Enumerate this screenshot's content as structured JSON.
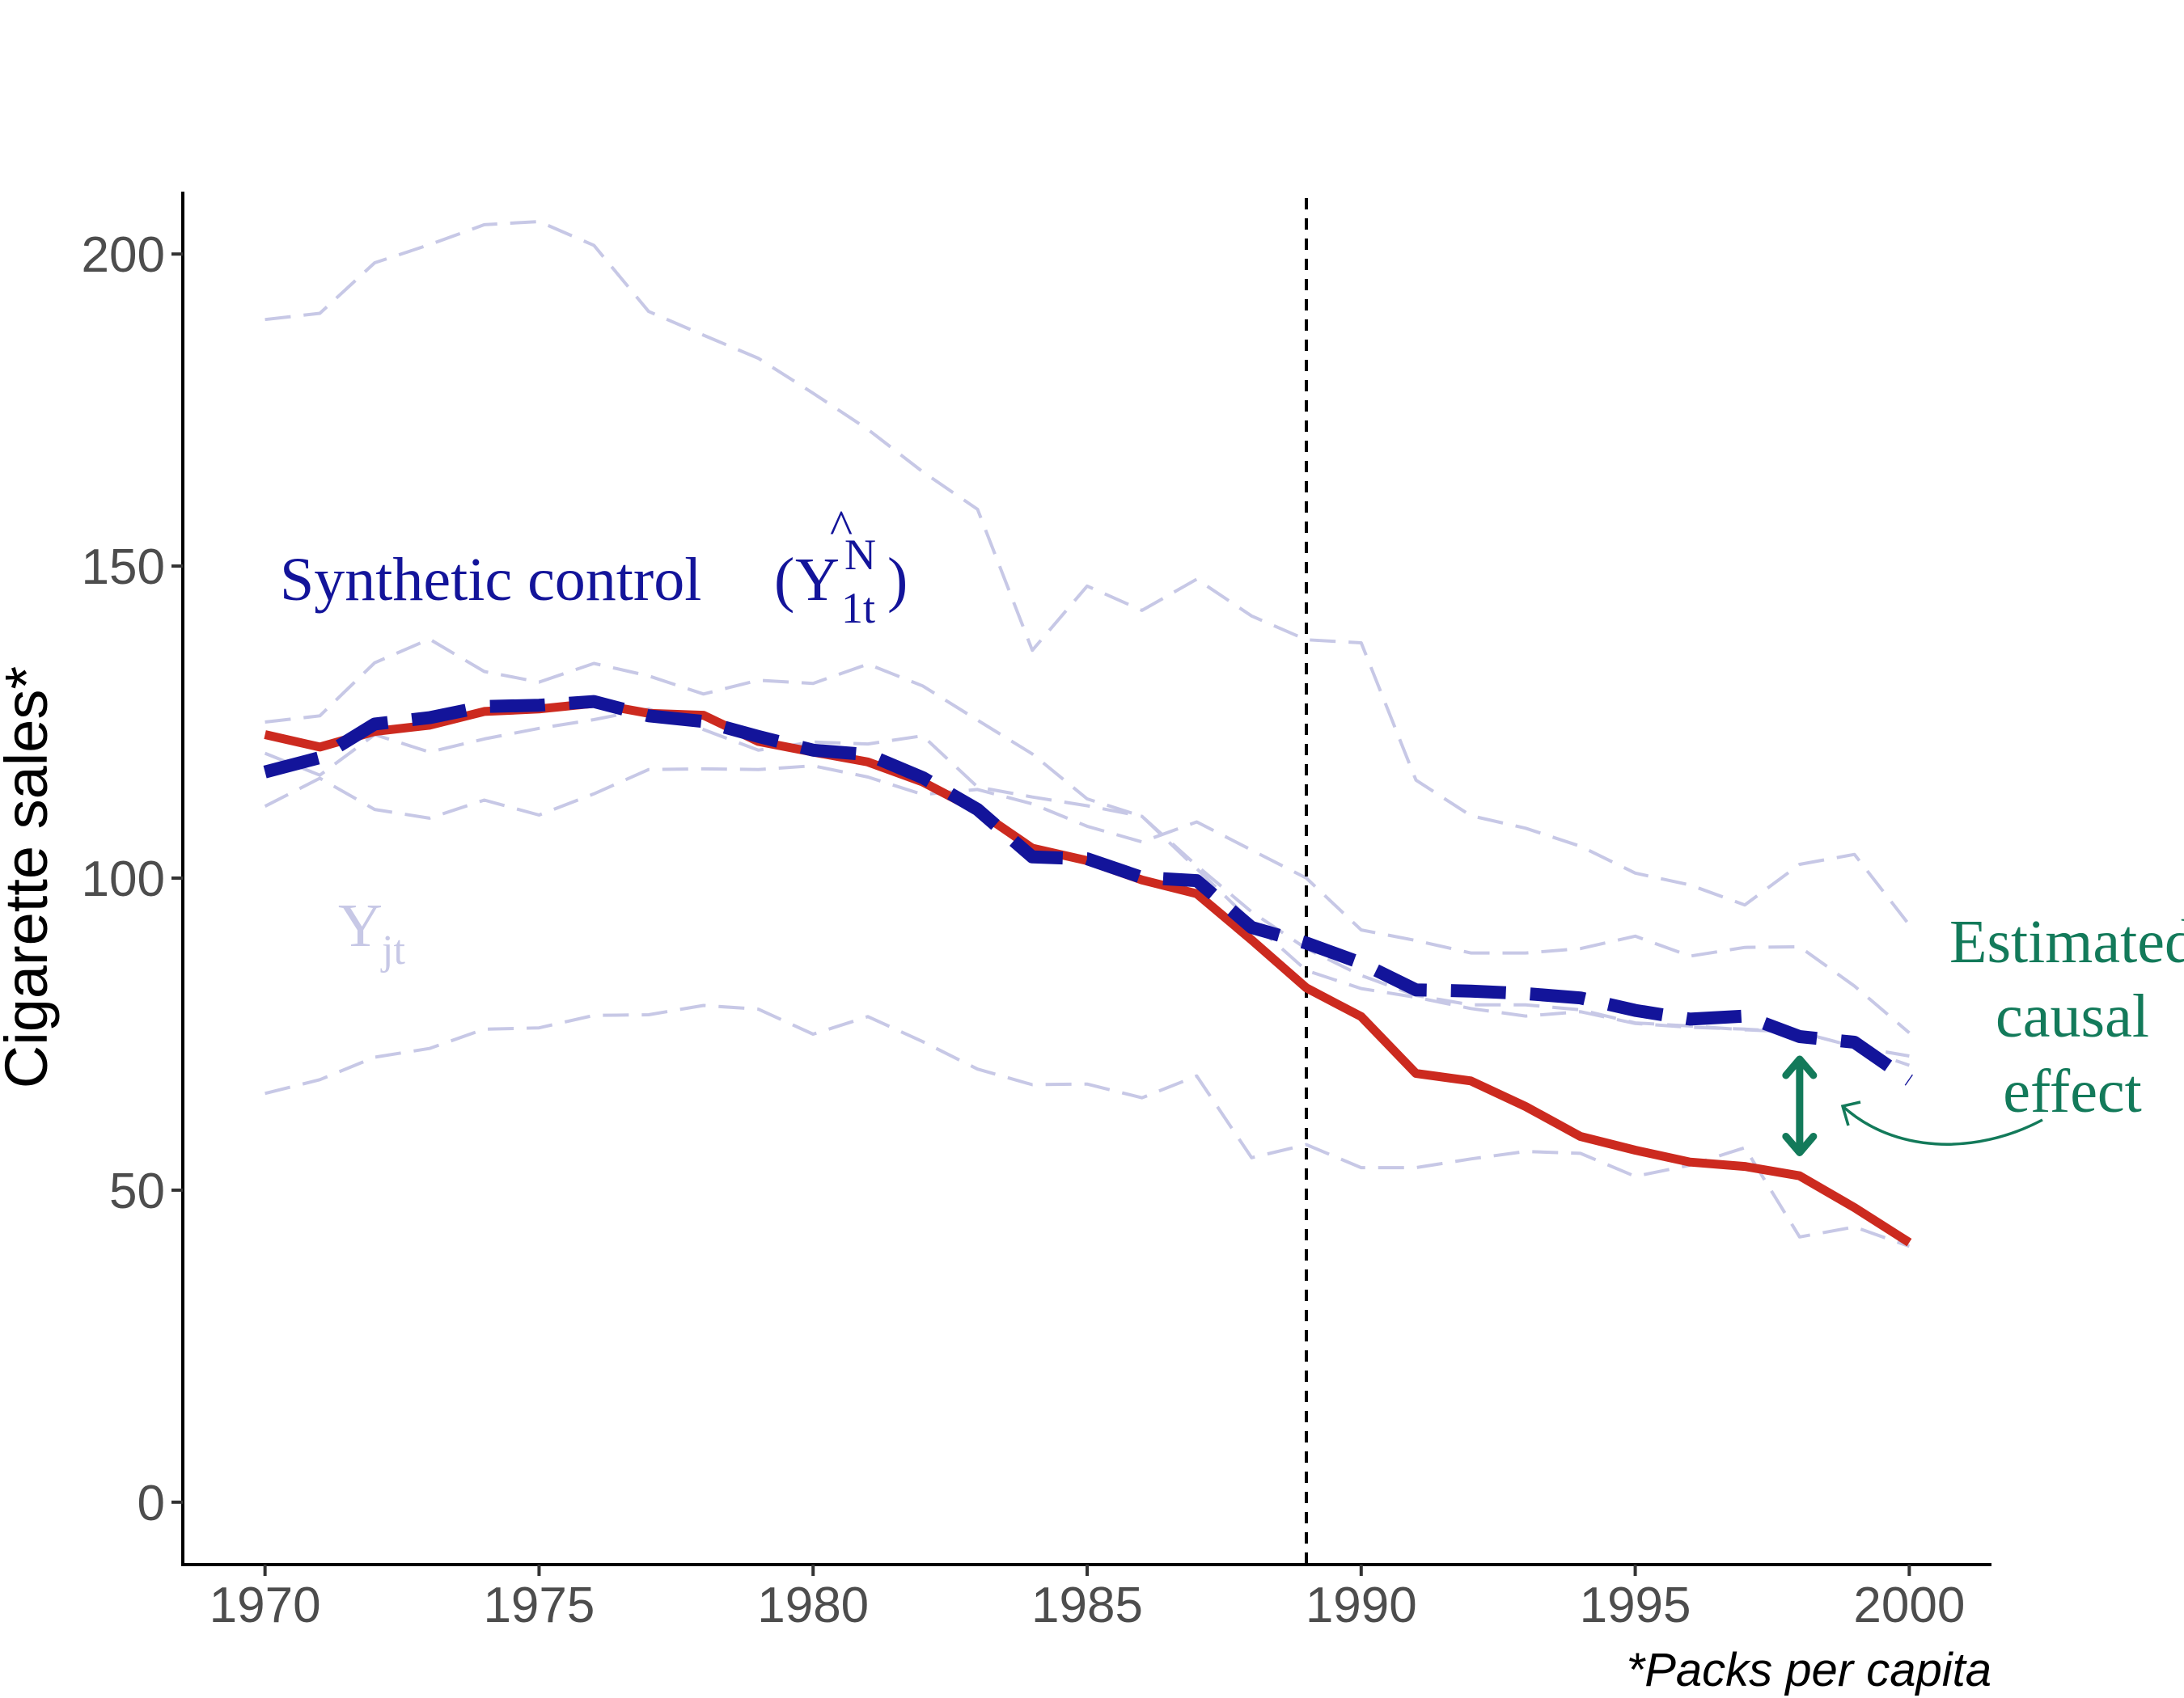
{
  "chart_data": {
    "type": "line",
    "ylabel": "Cigarette sales*",
    "caption": "*Packs per capita",
    "xlim": [
      1968.5,
      2001.5
    ],
    "ylim": [
      -10,
      210
    ],
    "x_ticks": [
      1970,
      1975,
      1980,
      1985,
      1990,
      1995,
      2000
    ],
    "y_ticks": [
      0,
      50,
      100,
      150,
      200
    ],
    "treatment_year": 1989,
    "x": [
      1970,
      1971,
      1972,
      1973,
      1974,
      1975,
      1976,
      1977,
      1978,
      1979,
      1980,
      1981,
      1982,
      1983,
      1984,
      1985,
      1986,
      1987,
      1988,
      1989,
      1990,
      1991,
      1992,
      1993,
      1994,
      1995,
      1996,
      1997,
      1998,
      1999,
      2000
    ],
    "series": [
      {
        "role": "treated",
        "color": "#cc2a1f",
        "values": [
          123.0,
          121.0,
          123.5,
          124.5,
          126.7,
          127.1,
          128.0,
          126.4,
          126.1,
          121.9,
          120.2,
          118.6,
          115.4,
          110.8,
          104.8,
          102.8,
          99.7,
          97.5,
          90.1,
          82.4,
          77.8,
          68.7,
          67.5,
          63.4,
          58.6,
          56.4,
          54.5,
          53.8,
          52.3,
          47.2,
          41.6
        ]
      },
      {
        "role": "synthetic",
        "color": "#13149a",
        "values": [
          117.0,
          119.3,
          124.7,
          125.7,
          127.5,
          127.7,
          128.3,
          126.0,
          125.1,
          122.7,
          120.5,
          119.8,
          116.1,
          111.0,
          103.4,
          103.1,
          100.1,
          99.6,
          92.1,
          89.6,
          86.4,
          82.1,
          81.9,
          81.5,
          80.8,
          78.8,
          77.4,
          77.9,
          74.6,
          73.7,
          67.6
        ]
      },
      {
        "role": "donor",
        "color": "#c7c8e6",
        "values": [
          189.5,
          190.5,
          198.6,
          201.5,
          204.7,
          205.2,
          201.4,
          190.8,
          187.0,
          183.3,
          177.7,
          171.9,
          165.1,
          159.1,
          136.5,
          146.8,
          142.9,
          147.9,
          142.0,
          138.2,
          137.7,
          115.7,
          110.0,
          108.0,
          105.1,
          100.8,
          98.9,
          95.7,
          102.2,
          103.8,
          92.5
        ]
      },
      {
        "role": "donor",
        "color": "#c7c8e6",
        "values": [
          125.0,
          126.0,
          134.5,
          138.3,
          133.1,
          131.4,
          134.4,
          132.4,
          129.5,
          131.7,
          131.2,
          134.3,
          130.8,
          125.3,
          119.9,
          112.7,
          109.9,
          102.0,
          94.6,
          88.7,
          84.4,
          81.2,
          79.7,
          79.7,
          78.9,
          76.8,
          76.3,
          75.7,
          75.3,
          73.0,
          70.0
        ]
      },
      {
        "role": "donor",
        "color": "#c7c8e6",
        "values": [
          120.0,
          116.5,
          123.0,
          120.2,
          122.3,
          124.0,
          125.4,
          127.1,
          123.8,
          120.5,
          121.8,
          121.5,
          122.8,
          114.6,
          113.0,
          111.6,
          109.9,
          101.5,
          93.0,
          85.2,
          82.3,
          80.9,
          79.1,
          77.9,
          78.6,
          76.7,
          76.1,
          75.8,
          75.3,
          73.0,
          71.5
        ]
      },
      {
        "role": "donor",
        "color": "#c7c8e6",
        "values": [
          111.5,
          116.0,
          111.0,
          109.6,
          112.5,
          110.1,
          113.5,
          117.4,
          117.5,
          117.4,
          118.0,
          116.2,
          113.4,
          114.2,
          111.9,
          108.3,
          105.8,
          109.0,
          104.5,
          100.0,
          91.7,
          90.0,
          88.0,
          88.0,
          88.7,
          90.7,
          87.5,
          88.9,
          89.0,
          82.7,
          75.2
        ]
      },
      {
        "role": "donor",
        "color": "#c7c8e6",
        "values": [
          65.5,
          67.7,
          71.3,
          72.7,
          75.8,
          76.0,
          78.0,
          78.1,
          79.6,
          79.0,
          75.0,
          77.8,
          73.8,
          69.4,
          66.9,
          67.0,
          64.8,
          68.3,
          55.2,
          57.3,
          53.6,
          53.6,
          55.0,
          56.2,
          55.9,
          52.2,
          54.0,
          56.8,
          42.5,
          44.1,
          41.0
        ]
      }
    ],
    "annotations": {
      "synthetic_label": {
        "text": "Synthetic control",
        "symbol": "Y",
        "hat": "^",
        "superscript": "N",
        "subscript": "1t"
      },
      "donor_label": {
        "symbol": "Y",
        "subscript": "jt"
      },
      "effect_label": {
        "lines": [
          "Estimated",
          "causal",
          "effect"
        ],
        "color": "#137a5a"
      },
      "effect_arrow": {
        "x": 1998,
        "from": 71.5,
        "to": 55.5
      }
    }
  }
}
